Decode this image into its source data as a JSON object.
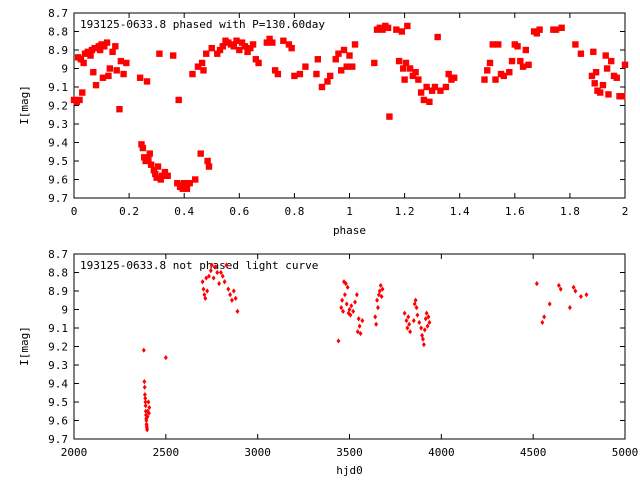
{
  "chart_data": [
    {
      "type": "scatter",
      "title": "193125-0633.8 phased with P=130.60day",
      "xlabel": "phase",
      "ylabel": "I[mag]",
      "xlim": [
        0,
        2
      ],
      "ylim": [
        9.7,
        8.7
      ],
      "y_inverted": true,
      "grid": false,
      "marker": "asterisk",
      "color": "#ff0000",
      "xticks": [
        0,
        0.2,
        0.4,
        0.6,
        0.8,
        1,
        1.2,
        1.4,
        1.6,
        1.8,
        2
      ],
      "xtick_labels": [
        "0",
        "0.2",
        "0.4",
        "0.6",
        "0.8",
        "1",
        "1.2",
        "1.4",
        "1.6",
        "1.8",
        "2"
      ],
      "yticks": [
        8.7,
        8.8,
        8.9,
        9.0,
        9.1,
        9.2,
        9.3,
        9.4,
        9.5,
        9.6,
        9.7
      ],
      "ytick_labels": [
        "8.7",
        "8.8",
        "8.9",
        "9",
        "9.1",
        "9.2",
        "9.3",
        "9.4",
        "9.5",
        "9.6",
        "9.7"
      ],
      "points": [
        [
          0.0,
          9.17
        ],
        [
          0.01,
          9.18
        ],
        [
          0.015,
          8.94
        ],
        [
          0.02,
          9.17
        ],
        [
          0.025,
          8.95
        ],
        [
          0.03,
          9.13
        ],
        [
          0.035,
          8.97
        ],
        [
          0.04,
          8.92
        ],
        [
          0.05,
          8.91
        ],
        [
          0.06,
          8.93
        ],
        [
          0.065,
          8.9
        ],
        [
          0.07,
          9.02
        ],
        [
          0.075,
          8.89
        ],
        [
          0.08,
          9.09
        ],
        [
          0.09,
          8.88
        ],
        [
          0.095,
          8.9
        ],
        [
          0.1,
          8.87
        ],
        [
          0.105,
          9.05
        ],
        [
          0.11,
          8.88
        ],
        [
          0.12,
          8.86
        ],
        [
          0.125,
          9.04
        ],
        [
          0.13,
          9.0
        ],
        [
          0.14,
          8.91
        ],
        [
          0.15,
          8.88
        ],
        [
          0.155,
          9.01
        ],
        [
          0.165,
          9.22
        ],
        [
          0.17,
          8.96
        ],
        [
          0.18,
          9.03
        ],
        [
          0.19,
          8.97
        ],
        [
          0.24,
          9.05
        ],
        [
          0.245,
          9.41
        ],
        [
          0.25,
          9.43
        ],
        [
          0.255,
          9.48
        ],
        [
          0.26,
          9.5
        ],
        [
          0.265,
          9.07
        ],
        [
          0.27,
          9.49
        ],
        [
          0.275,
          9.46
        ],
        [
          0.28,
          9.52
        ],
        [
          0.29,
          9.55
        ],
        [
          0.295,
          9.57
        ],
        [
          0.3,
          9.59
        ],
        [
          0.305,
          9.53
        ],
        [
          0.31,
          8.92
        ],
        [
          0.315,
          9.6
        ],
        [
          0.32,
          9.58
        ],
        [
          0.33,
          9.56
        ],
        [
          0.34,
          9.58
        ],
        [
          0.36,
          8.93
        ],
        [
          0.375,
          9.62
        ],
        [
          0.38,
          9.17
        ],
        [
          0.385,
          9.64
        ],
        [
          0.39,
          9.63
        ],
        [
          0.395,
          9.65
        ],
        [
          0.4,
          9.62
        ],
        [
          0.405,
          9.64
        ],
        [
          0.41,
          9.65
        ],
        [
          0.42,
          9.62
        ],
        [
          0.43,
          9.03
        ],
        [
          0.44,
          9.6
        ],
        [
          0.45,
          8.99
        ],
        [
          0.46,
          9.46
        ],
        [
          0.465,
          8.97
        ],
        [
          0.47,
          9.01
        ],
        [
          0.48,
          8.92
        ],
        [
          0.485,
          9.5
        ],
        [
          0.49,
          9.53
        ],
        [
          0.5,
          8.89
        ],
        [
          0.52,
          8.92
        ],
        [
          0.53,
          8.9
        ],
        [
          0.54,
          8.88
        ],
        [
          0.55,
          8.85
        ],
        [
          0.56,
          8.86
        ],
        [
          0.57,
          8.87
        ],
        [
          0.58,
          8.88
        ],
        [
          0.59,
          8.85
        ],
        [
          0.6,
          8.9
        ],
        [
          0.61,
          8.86
        ],
        [
          0.62,
          8.88
        ],
        [
          0.63,
          8.91
        ],
        [
          0.64,
          8.89
        ],
        [
          0.65,
          8.87
        ],
        [
          0.66,
          8.95
        ],
        [
          0.67,
          8.97
        ],
        [
          0.7,
          8.86
        ],
        [
          0.71,
          8.84
        ],
        [
          0.72,
          8.86
        ],
        [
          0.73,
          9.01
        ],
        [
          0.74,
          9.03
        ],
        [
          0.76,
          8.85
        ],
        [
          0.78,
          8.87
        ],
        [
          0.79,
          8.89
        ],
        [
          0.8,
          9.04
        ],
        [
          0.82,
          9.03
        ],
        [
          0.84,
          8.99
        ],
        [
          0.88,
          9.03
        ],
        [
          0.885,
          8.95
        ],
        [
          0.9,
          9.1
        ],
        [
          0.92,
          9.07
        ],
        [
          0.93,
          9.04
        ],
        [
          0.95,
          8.95
        ],
        [
          0.96,
          8.92
        ],
        [
          0.97,
          9.01
        ],
        [
          0.98,
          8.9
        ],
        [
          0.99,
          8.99
        ],
        [
          1.0,
          8.93
        ],
        [
          1.01,
          8.99
        ],
        [
          1.02,
          8.87
        ],
        [
          1.09,
          8.97
        ],
        [
          1.1,
          8.79
        ],
        [
          1.11,
          8.78
        ],
        [
          1.12,
          8.79
        ],
        [
          1.13,
          8.77
        ],
        [
          1.14,
          8.78
        ],
        [
          1.145,
          9.26
        ],
        [
          1.17,
          8.79
        ],
        [
          1.18,
          8.96
        ],
        [
          1.19,
          8.8
        ],
        [
          1.195,
          9.0
        ],
        [
          1.2,
          9.06
        ],
        [
          1.205,
          8.97
        ],
        [
          1.21,
          8.77
        ],
        [
          1.22,
          9.0
        ],
        [
          1.23,
          9.04
        ],
        [
          1.24,
          9.02
        ],
        [
          1.25,
          9.06
        ],
        [
          1.26,
          9.13
        ],
        [
          1.27,
          9.17
        ],
        [
          1.28,
          9.1
        ],
        [
          1.29,
          9.18
        ],
        [
          1.3,
          9.12
        ],
        [
          1.31,
          9.1
        ],
        [
          1.32,
          8.83
        ],
        [
          1.33,
          9.12
        ],
        [
          1.35,
          9.1
        ],
        [
          1.36,
          9.03
        ],
        [
          1.37,
          9.06
        ],
        [
          1.38,
          9.05
        ],
        [
          1.49,
          9.06
        ],
        [
          1.5,
          9.01
        ],
        [
          1.51,
          8.97
        ],
        [
          1.52,
          8.87
        ],
        [
          1.53,
          9.06
        ],
        [
          1.54,
          8.87
        ],
        [
          1.55,
          9.03
        ],
        [
          1.56,
          9.04
        ],
        [
          1.58,
          9.02
        ],
        [
          1.59,
          8.96
        ],
        [
          1.6,
          8.87
        ],
        [
          1.61,
          8.88
        ],
        [
          1.62,
          8.96
        ],
        [
          1.63,
          8.99
        ],
        [
          1.64,
          8.9
        ],
        [
          1.65,
          8.98
        ],
        [
          1.67,
          8.8
        ],
        [
          1.68,
          8.81
        ],
        [
          1.69,
          8.79
        ],
        [
          1.74,
          8.79
        ],
        [
          1.75,
          8.79
        ],
        [
          1.77,
          8.78
        ],
        [
          1.82,
          8.87
        ],
        [
          1.84,
          8.92
        ],
        [
          1.88,
          9.04
        ],
        [
          1.885,
          8.91
        ],
        [
          1.89,
          9.08
        ],
        [
          1.895,
          9.02
        ],
        [
          1.9,
          9.12
        ],
        [
          1.91,
          9.13
        ],
        [
          1.92,
          9.09
        ],
        [
          1.93,
          8.93
        ],
        [
          1.935,
          9.0
        ],
        [
          1.94,
          9.14
        ],
        [
          1.95,
          8.96
        ],
        [
          1.96,
          9.04
        ],
        [
          1.97,
          9.05
        ],
        [
          1.98,
          9.15
        ],
        [
          1.99,
          9.15
        ],
        [
          2.0,
          8.98
        ]
      ]
    },
    {
      "type": "scatter",
      "title": "193125-0633.8 not phased light curve",
      "xlabel": "hjd0",
      "ylabel": "I[mag]",
      "xlim": [
        2000,
        5000
      ],
      "ylim": [
        9.7,
        8.7
      ],
      "y_inverted": true,
      "grid": false,
      "marker": "diamond",
      "color": "#ff0000",
      "xticks": [
        2000,
        2500,
        3000,
        3500,
        4000,
        4500,
        5000
      ],
      "xtick_labels": [
        "2000",
        "2500",
        "3000",
        "3500",
        "4000",
        "4500",
        "5000"
      ],
      "yticks": [
        8.7,
        8.8,
        8.9,
        9.0,
        9.1,
        9.2,
        9.3,
        9.4,
        9.5,
        9.6,
        9.7
      ],
      "ytick_labels": [
        "8.7",
        "8.8",
        "8.9",
        "9",
        "9.1",
        "9.2",
        "9.3",
        "9.4",
        "9.5",
        "9.6",
        "9.7"
      ],
      "points": [
        [
          2380,
          9.22
        ],
        [
          2383,
          9.39
        ],
        [
          2385,
          9.42
        ],
        [
          2386,
          9.46
        ],
        [
          2388,
          9.48
        ],
        [
          2389,
          9.5
        ],
        [
          2390,
          9.52
        ],
        [
          2391,
          9.55
        ],
        [
          2392,
          9.57
        ],
        [
          2393,
          9.59
        ],
        [
          2394,
          9.6
        ],
        [
          2395,
          9.62
        ],
        [
          2396,
          9.63
        ],
        [
          2397,
          9.64
        ],
        [
          2398,
          9.65
        ],
        [
          2400,
          9.58
        ],
        [
          2402,
          9.55
        ],
        [
          2405,
          9.5
        ],
        [
          2408,
          9.56
        ],
        [
          2410,
          9.53
        ],
        [
          2500,
          9.26
        ],
        [
          2700,
          8.85
        ],
        [
          2705,
          8.89
        ],
        [
          2710,
          8.92
        ],
        [
          2715,
          8.94
        ],
        [
          2720,
          8.83
        ],
        [
          2725,
          8.9
        ],
        [
          2735,
          8.82
        ],
        [
          2745,
          8.79
        ],
        [
          2750,
          8.76
        ],
        [
          2760,
          8.83
        ],
        [
          2770,
          8.77
        ],
        [
          2780,
          8.8
        ],
        [
          2790,
          8.86
        ],
        [
          2800,
          8.8
        ],
        [
          2810,
          8.82
        ],
        [
          2820,
          8.85
        ],
        [
          2830,
          8.76
        ],
        [
          2840,
          8.89
        ],
        [
          2850,
          8.92
        ],
        [
          2860,
          8.95
        ],
        [
          2870,
          8.9
        ],
        [
          2880,
          8.94
        ],
        [
          2890,
          9.01
        ],
        [
          3440,
          9.17
        ],
        [
          3455,
          8.99
        ],
        [
          3460,
          8.95
        ],
        [
          3465,
          9.01
        ],
        [
          3470,
          8.85
        ],
        [
          3475,
          8.92
        ],
        [
          3480,
          8.86
        ],
        [
          3485,
          8.97
        ],
        [
          3490,
          8.88
        ],
        [
          3495,
          9.02
        ],
        [
          3500,
          9.0
        ],
        [
          3505,
          9.03
        ],
        [
          3510,
          8.98
        ],
        [
          3520,
          9.01
        ],
        [
          3530,
          8.96
        ],
        [
          3540,
          8.92
        ],
        [
          3545,
          9.12
        ],
        [
          3550,
          9.05
        ],
        [
          3555,
          9.09
        ],
        [
          3560,
          9.13
        ],
        [
          3570,
          9.06
        ],
        [
          3640,
          9.04
        ],
        [
          3645,
          9.08
        ],
        [
          3650,
          8.95
        ],
        [
          3655,
          8.99
        ],
        [
          3660,
          8.92
        ],
        [
          3665,
          8.9
        ],
        [
          3670,
          8.87
        ],
        [
          3675,
          8.93
        ],
        [
          3680,
          8.89
        ],
        [
          3800,
          9.02
        ],
        [
          3810,
          9.06
        ],
        [
          3815,
          9.1
        ],
        [
          3820,
          9.04
        ],
        [
          3825,
          9.08
        ],
        [
          3830,
          9.12
        ],
        [
          3850,
          9.06
        ],
        [
          3855,
          8.97
        ],
        [
          3860,
          8.95
        ],
        [
          3865,
          8.99
        ],
        [
          3870,
          9.03
        ],
        [
          3880,
          9.07
        ],
        [
          3890,
          9.1
        ],
        [
          3895,
          9.14
        ],
        [
          3900,
          9.16
        ],
        [
          3905,
          9.19
        ],
        [
          3910,
          9.11
        ],
        [
          3915,
          9.05
        ],
        [
          3920,
          9.02
        ],
        [
          3925,
          9.09
        ],
        [
          3930,
          9.04
        ],
        [
          3935,
          9.07
        ],
        [
          4520,
          8.86
        ],
        [
          4550,
          9.07
        ],
        [
          4560,
          9.04
        ],
        [
          4590,
          8.97
        ],
        [
          4640,
          8.87
        ],
        [
          4650,
          8.89
        ],
        [
          4700,
          8.99
        ],
        [
          4720,
          8.88
        ],
        [
          4730,
          8.9
        ],
        [
          4760,
          8.93
        ],
        [
          4790,
          8.92
        ]
      ]
    }
  ]
}
